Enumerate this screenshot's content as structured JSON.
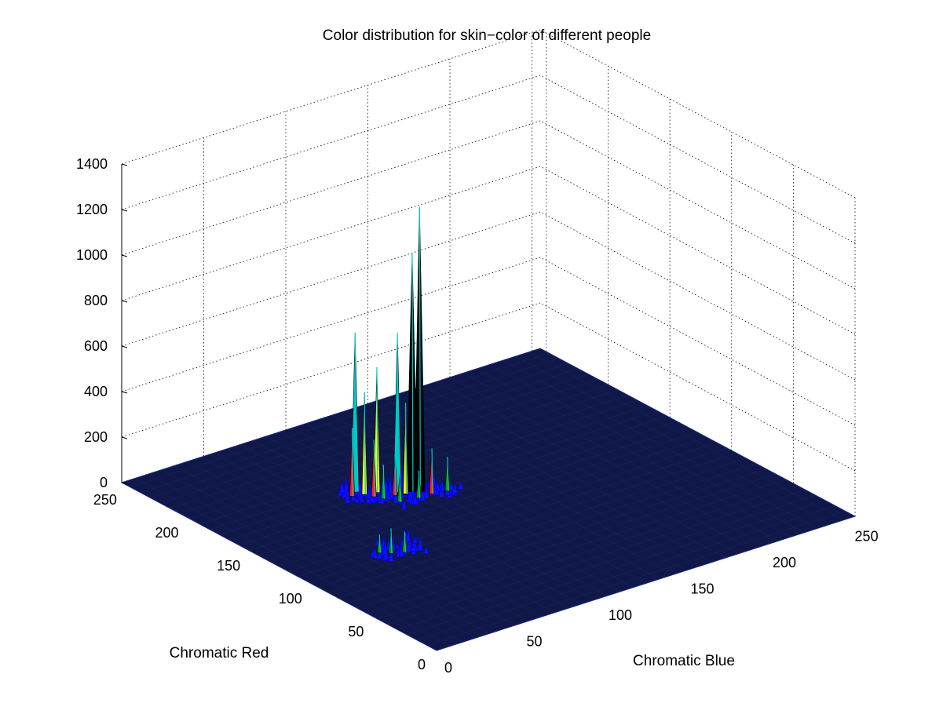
{
  "chart_data": {
    "type": "surface",
    "title": "Color distribution for skin−color of different people",
    "xlabel": "Chromatic Blue",
    "ylabel": "Chromatic Red",
    "zlabel": "",
    "xlim": [
      0,
      255
    ],
    "ylim": [
      0,
      255
    ],
    "zlim": [
      0,
      1400
    ],
    "x_ticks": [
      "0",
      "50",
      "100",
      "150",
      "200",
      "250"
    ],
    "y_ticks": [
      "0",
      "50",
      "100",
      "150",
      "200",
      "250"
    ],
    "z_ticks": [
      "0",
      "200",
      "400",
      "600",
      "800",
      "1000",
      "1200",
      "1400"
    ],
    "grid": true,
    "colormap": [
      "#0000aa",
      "#1010ff",
      "#00a000",
      "#ff2020",
      "#ffff00",
      "#00c8c8",
      "#000000"
    ],
    "surface_color": "#101848",
    "peaks": [
      {
        "x": 107,
        "y": 156,
        "z": 1250
      },
      {
        "x": 104,
        "y": 158,
        "z": 1050
      },
      {
        "x": 98,
        "y": 162,
        "z": 700
      },
      {
        "x": 82,
        "y": 175,
        "z": 700
      },
      {
        "x": 90,
        "y": 168,
        "z": 550
      },
      {
        "x": 84,
        "y": 170,
        "z": 450
      },
      {
        "x": 100,
        "y": 158,
        "z": 400
      },
      {
        "x": 78,
        "y": 172,
        "z": 300
      },
      {
        "x": 86,
        "y": 165,
        "z": 250
      },
      {
        "x": 110,
        "y": 150,
        "z": 200
      },
      {
        "x": 118,
        "y": 148,
        "z": 150
      },
      {
        "x": 95,
        "y": 160,
        "z": 180
      },
      {
        "x": 102,
        "y": 150,
        "z": 120
      },
      {
        "x": 92,
        "y": 152,
        "z": 130
      },
      {
        "x": 88,
        "y": 160,
        "z": 150
      },
      {
        "x": 52,
        "y": 106,
        "z": 110
      },
      {
        "x": 58,
        "y": 103,
        "z": 90
      },
      {
        "x": 48,
        "y": 110,
        "z": 80
      },
      {
        "x": 62,
        "y": 108,
        "z": 60
      }
    ]
  }
}
